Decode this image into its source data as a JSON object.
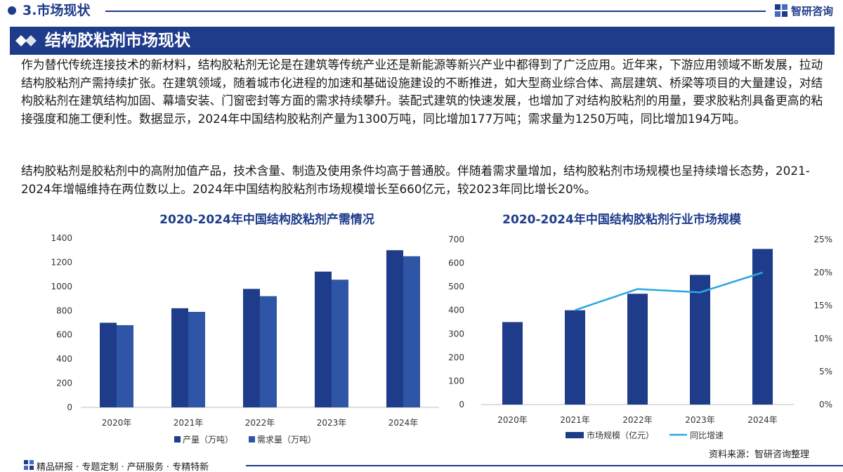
{
  "header": {
    "section_title": "3.市场现状",
    "brand": "智研咨询",
    "banner_title": "结构胶粘剂市场现状"
  },
  "paragraphs": [
    "作为替代传统连接技术的新材料，结构胶粘剂无论是在建筑等传统产业还是新能源等新兴产业中都得到了广泛应用。近年来，下游应用领域不断发展，拉动结构胶粘剂产需持续扩张。在建筑领域，随着城市化进程的加速和基础设施建设的不断推进，如大型商业综合体、高层建筑、桥梁等项目的大量建设，对结构胶粘剂在建筑结构加固、幕墙安装、门窗密封等方面的需求持续攀升。装配式建筑的快速发展，也增加了对结构胶粘剂的用量，要求胶粘剂具备更高的粘接强度和施工便利性。数据显示，2024年中国结构胶粘剂产量为1300万吨，同比增加177万吨；需求量为1250万吨，同比增加194万吨。",
    "结构胶粘剂是胶粘剂中的高附加值产品，技术含量、制造及使用条件均高于普通胶。伴随着需求量增加，结构胶粘剂市场规模也呈持续增长态势，2021-2024年增幅维持在两位数以上。2024年中国结构胶粘剂市场规模增长至660亿元，较2023年同比增长20%。"
  ],
  "colors": {
    "brand": "#1f3c8a",
    "series_dark": "#1f3c8a",
    "series_mid": "#2f56a6",
    "line": "#29a8e0"
  },
  "chart_data": [
    {
      "type": "bar",
      "title": "2020-2024年中国结构胶粘剂产需情况",
      "categories": [
        "2020年",
        "2021年",
        "2022年",
        "2023年",
        "2024年"
      ],
      "ylim": [
        0,
        1400
      ],
      "yticks": [
        0,
        200,
        400,
        600,
        800,
        1000,
        1200,
        1400
      ],
      "grid": false,
      "legend_position": "bottom",
      "series": [
        {
          "name": "产量（万吨）",
          "values": [
            700,
            820,
            980,
            1123,
            1300
          ],
          "color": "#1f3c8a"
        },
        {
          "name": "需求量（万吨）",
          "values": [
            680,
            790,
            920,
            1056,
            1250
          ],
          "color": "#2f56a6"
        }
      ]
    },
    {
      "type": "bar",
      "title": "2020-2024年中国结构胶粘剂行业市场规模",
      "categories": [
        "2020年",
        "2021年",
        "2022年",
        "2023年",
        "2024年"
      ],
      "ylim": [
        0,
        700
      ],
      "yticks": [
        0,
        100,
        200,
        300,
        400,
        500,
        600,
        700
      ],
      "y2lim": [
        0,
        25
      ],
      "y2ticks": [
        "0%",
        "5%",
        "10%",
        "15%",
        "20%",
        "25%"
      ],
      "grid": false,
      "legend_position": "bottom",
      "series": [
        {
          "name": "市场规模（亿元）",
          "type": "bar",
          "axis": "left",
          "values": [
            350,
            400,
            470,
            550,
            660
          ],
          "color": "#1f3c8a"
        },
        {
          "name": "同比增速",
          "type": "line",
          "axis": "right",
          "values": [
            null,
            14.3,
            17.5,
            17.0,
            20.0
          ],
          "color": "#29a8e0"
        }
      ]
    }
  ],
  "source": "资料来源：智研咨询整理",
  "footer": {
    "text": "精品研报 · 专题定制 · 产研服务 · 专精特新"
  }
}
